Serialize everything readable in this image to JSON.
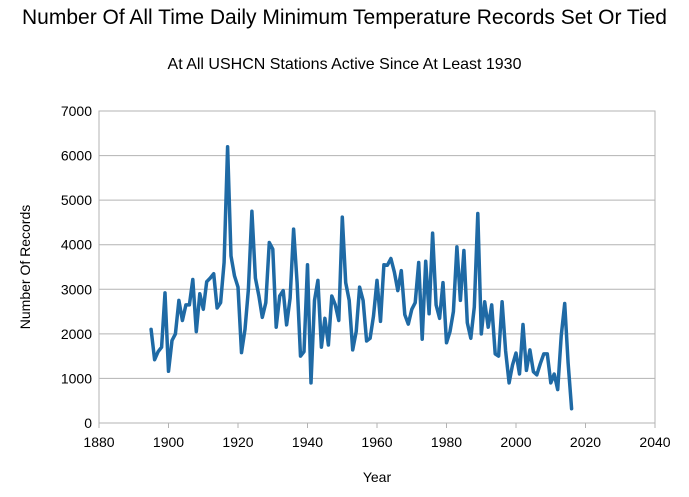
{
  "chart_data": {
    "type": "line",
    "title": "Number Of All Time Daily Minimum Temperature Records Set Or Tied",
    "subtitle": "At All USHCN Stations Active Since At Least 1930",
    "xlabel": "Year",
    "ylabel": "Number Of Records",
    "xlim": [
      1880,
      2040
    ],
    "ylim": [
      0,
      7000
    ],
    "xticks": [
      1880,
      1900,
      1920,
      1940,
      1960,
      1980,
      2000,
      2020,
      2040
    ],
    "yticks": [
      0,
      1000,
      2000,
      3000,
      4000,
      5000,
      6000,
      7000
    ],
    "grid": true,
    "legend": "none",
    "line_color": "#1f6aa5",
    "series": [
      {
        "x": [
          1895,
          1896,
          1897,
          1898,
          1899,
          1900,
          1901,
          1902,
          1903,
          1904,
          1905,
          1906,
          1907,
          1908,
          1909,
          1910,
          1911,
          1912,
          1913,
          1914,
          1915,
          1916,
          1917,
          1918,
          1919,
          1920,
          1921,
          1922,
          1923,
          1924,
          1925,
          1926,
          1927,
          1928,
          1929,
          1930,
          1931,
          1932,
          1933,
          1934,
          1935,
          1936,
          1937,
          1938,
          1939,
          1940,
          1941,
          1942,
          1943,
          1944,
          1945,
          1946,
          1947,
          1948,
          1949,
          1950,
          1951,
          1952,
          1953,
          1954,
          1955,
          1956,
          1957,
          1958,
          1959,
          1960,
          1961,
          1962,
          1963,
          1964,
          1965,
          1966,
          1967,
          1968,
          1969,
          1970,
          1971,
          1972,
          1973,
          1974,
          1975,
          1976,
          1977,
          1978,
          1979,
          1980,
          1981,
          1982,
          1983,
          1984,
          1985,
          1986,
          1987,
          1988,
          1989,
          1990,
          1991,
          1992,
          1993,
          1994,
          1995,
          1996,
          1997,
          1998,
          1999,
          2000,
          2001,
          2002,
          2003,
          2004,
          2005,
          2006,
          2007,
          2008,
          2009,
          2010,
          2011,
          2012,
          2013,
          2014,
          2015,
          2016
        ],
        "values": [
          2100,
          1420,
          1600,
          1700,
          2920,
          1160,
          1850,
          2000,
          2750,
          2300,
          2650,
          2650,
          3220,
          2050,
          2900,
          2550,
          3170,
          3250,
          3350,
          2580,
          2700,
          3600,
          6200,
          3750,
          3300,
          3050,
          1580,
          2100,
          3000,
          4750,
          3250,
          2850,
          2370,
          2700,
          4050,
          3900,
          2150,
          2850,
          2970,
          2200,
          2800,
          4350,
          3150,
          1500,
          1600,
          3550,
          900,
          2750,
          3200,
          1700,
          2350,
          1750,
          2850,
          2650,
          2300,
          4620,
          3150,
          2750,
          1640,
          2050,
          3050,
          2750,
          1840,
          1900,
          2400,
          3200,
          2280,
          3550,
          3540,
          3690,
          3380,
          2970,
          3420,
          2430,
          2220,
          2550,
          2700,
          3600,
          1880,
          3630,
          2450,
          4260,
          2650,
          2350,
          3150,
          1800,
          2050,
          2500,
          3950,
          2750,
          3870,
          2250,
          1900,
          2600,
          4700,
          2000,
          2720,
          2150,
          2650,
          1550,
          1500,
          2720,
          1620,
          900,
          1300,
          1570,
          1100,
          2210,
          1180,
          1640,
          1150,
          1080,
          1330,
          1550,
          1550,
          900,
          1100,
          750,
          1950,
          2680,
          1350,
          320
        ]
      }
    ]
  }
}
